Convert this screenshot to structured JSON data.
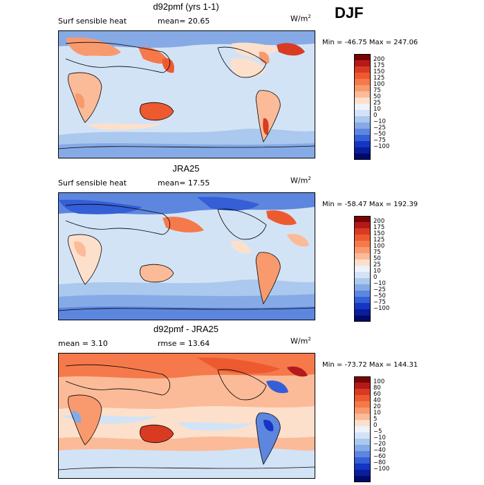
{
  "season": "DJF",
  "panels": [
    {
      "title": "d92pmf (yrs 1-1)",
      "left_label": "Surf sensible heat",
      "right_label": "mean=  20.65",
      "unit_base": "W/m",
      "unit_exp": "2",
      "minmax": "Min = -46.75  Max = 247.06",
      "colorbar": {
        "colors": [
          "#7a0403",
          "#b41a1a",
          "#d93b22",
          "#ee5a30",
          "#f5794b",
          "#f89a6e",
          "#fbbb98",
          "#fde0cb",
          "#eef2fa",
          "#d3e3f6",
          "#abc8ee",
          "#86aae6",
          "#5d86df",
          "#345fd6",
          "#1535c4",
          "#0a1e9a",
          "#000a6a"
        ],
        "labels": [
          "200",
          "175",
          "150",
          "125",
          "100",
          "75",
          "50",
          "25",
          "10",
          "0",
          "−10",
          "−25",
          "−50",
          "−75",
          "−100"
        ]
      }
    },
    {
      "title": "JRA25",
      "left_label": "Surf sensible heat",
      "right_label": "mean=  17.55",
      "unit_base": "W/m",
      "unit_exp": "2",
      "minmax": "Min = -58.47  Max = 192.39",
      "colorbar": {
        "colors": [
          "#7a0403",
          "#b41a1a",
          "#d93b22",
          "#ee5a30",
          "#f5794b",
          "#f89a6e",
          "#fbbb98",
          "#fde0cb",
          "#eef2fa",
          "#d3e3f6",
          "#abc8ee",
          "#86aae6",
          "#5d86df",
          "#345fd6",
          "#1535c4",
          "#0a1e9a",
          "#000a6a"
        ],
        "labels": [
          "200",
          "175",
          "150",
          "125",
          "100",
          "75",
          "50",
          "25",
          "10",
          "0",
          "−10",
          "−25",
          "−50",
          "−75",
          "−100"
        ]
      }
    },
    {
      "title": "d92pmf - JRA25",
      "left_label": "mean =   3.10",
      "right_label": "rmse =  13.64",
      "unit_base": "W/m",
      "unit_exp": "2",
      "minmax": "Min = -73.72  Max = 144.31",
      "colorbar": {
        "colors": [
          "#7a0403",
          "#b41a1a",
          "#d93b22",
          "#ee5a30",
          "#f5794b",
          "#f89a6e",
          "#fbbb98",
          "#fde0cb",
          "#eef2fa",
          "#d3e3f6",
          "#abc8ee",
          "#86aae6",
          "#5d86df",
          "#345fd6",
          "#1535c4",
          "#0a1e9a",
          "#000a6a"
        ],
        "labels": [
          "100",
          "80",
          "60",
          "40",
          "20",
          "10",
          "5",
          "0",
          "−5",
          "−10",
          "−20",
          "−40",
          "−60",
          "−80",
          "−100"
        ]
      }
    }
  ]
}
